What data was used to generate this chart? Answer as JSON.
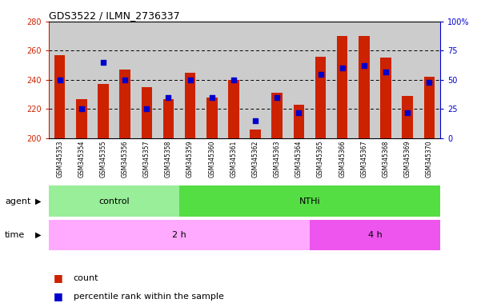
{
  "title": "GDS3522 / ILMN_2736337",
  "samples": [
    "GSM345353",
    "GSM345354",
    "GSM345355",
    "GSM345356",
    "GSM345357",
    "GSM345358",
    "GSM345359",
    "GSM345360",
    "GSM345361",
    "GSM345362",
    "GSM345363",
    "GSM345364",
    "GSM345365",
    "GSM345366",
    "GSM345367",
    "GSM345368",
    "GSM345369",
    "GSM345370"
  ],
  "counts": [
    257,
    227,
    237,
    247,
    235,
    227,
    245,
    228,
    240,
    206,
    231,
    223,
    256,
    270,
    270,
    255,
    229,
    242
  ],
  "pct_ranks": [
    50,
    25,
    65,
    50,
    25,
    35,
    50,
    35,
    50,
    15,
    35,
    22,
    55,
    60,
    62,
    57,
    22,
    48
  ],
  "y_min": 200,
  "y_max": 280,
  "y_ticks": [
    200,
    220,
    240,
    260,
    280
  ],
  "y_right_ticks": [
    0,
    25,
    50,
    75,
    100
  ],
  "bar_color": "#CC2200",
  "dot_color": "#0000CC",
  "agent_ctrl_n": 6,
  "time_2h_n": 12,
  "control_color": "#99EE99",
  "nthi_color": "#55DD44",
  "time_2h_color": "#FFAAFF",
  "time_4h_color": "#EE55EE",
  "bar_bg": "#CCCCCC",
  "legend_count": "count",
  "legend_pct": "percentile rank within the sample",
  "title_fontsize": 9,
  "tick_fontsize": 7,
  "label_fontsize": 8
}
